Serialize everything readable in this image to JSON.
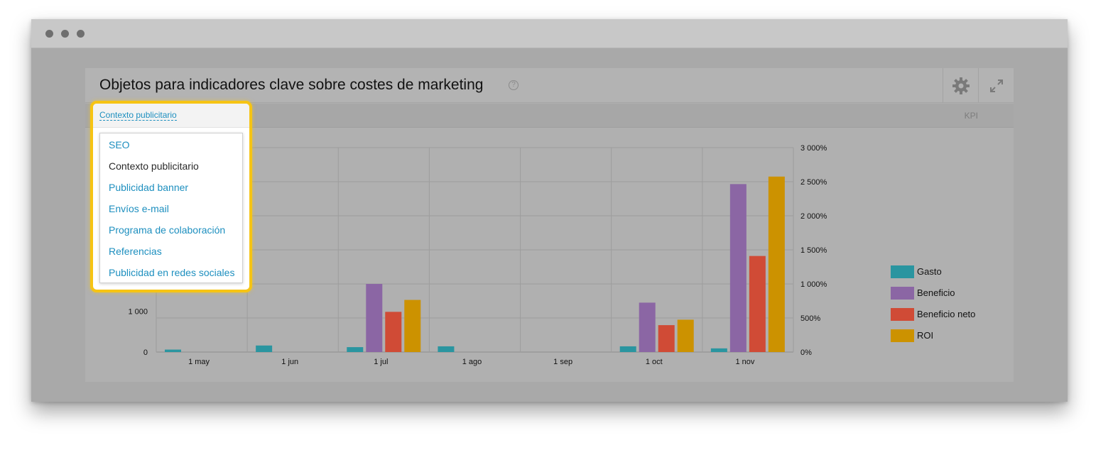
{
  "panel": {
    "title": "Objetos para indicadores clave sobre costes de marketing",
    "help_icon": "question-circle-icon",
    "settings_icon": "gear-icon",
    "expand_icon": "expand-icon",
    "kpi_label": "KPI"
  },
  "dropdown": {
    "selected": "Contexto publicitario",
    "items": [
      {
        "label": "SEO"
      },
      {
        "label": "Contexto publicitario"
      },
      {
        "label": "Publicidad banner"
      },
      {
        "label": "Envíos e-mail"
      },
      {
        "label": "Programa de colaboración"
      },
      {
        "label": "Referencias"
      },
      {
        "label": "Publicidad en redes sociales"
      }
    ]
  },
  "chart_data": {
    "type": "bar",
    "categories": [
      "1 may",
      "1 jun",
      "1 jul",
      "1 ago",
      "1 sep",
      "1 oct",
      "1 nov"
    ],
    "y_left_ticks": [
      "0",
      "1 000"
    ],
    "y_right_ticks": [
      "0%",
      "500%",
      "1 000%",
      "1 500%",
      "2 000%",
      "2 500%",
      "3 000%"
    ],
    "y_left_lim": [
      0,
      5000
    ],
    "y_right_lim": [
      0,
      3000
    ],
    "grid": true,
    "legend_position": "right",
    "series": [
      {
        "name": "Gasto",
        "color": "#2a95a0",
        "values": [
          60,
          160,
          120,
          140,
          0,
          140,
          90
        ],
        "axis": "left"
      },
      {
        "name": "Beneficio",
        "color": "#8b66a4",
        "values": [
          0,
          0,
          1000,
          0,
          0,
          725,
          2465
        ],
        "axis": "right"
      },
      {
        "name": "Beneficio neto",
        "color": "#d04b36",
        "values": [
          0,
          0,
          590,
          0,
          0,
          395,
          1410
        ],
        "axis": "right"
      },
      {
        "name": "ROI",
        "color": "#cc9200",
        "values": [
          0,
          0,
          765,
          0,
          0,
          475,
          2575
        ],
        "axis": "right"
      }
    ]
  }
}
